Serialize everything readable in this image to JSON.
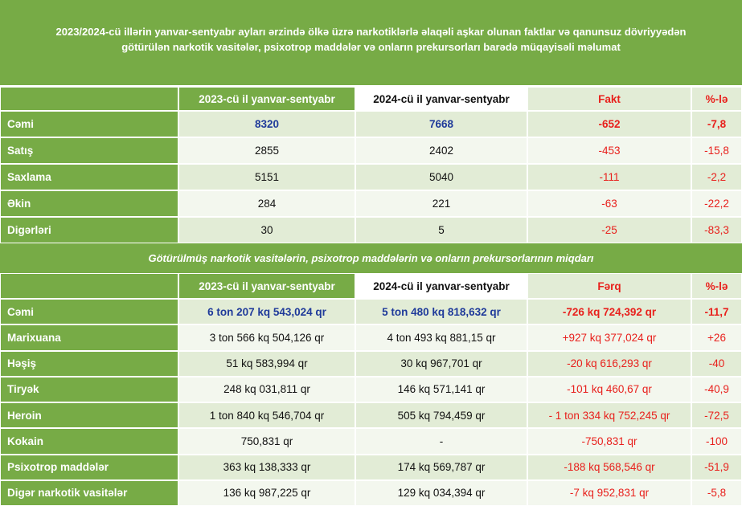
{
  "title": "2023/2024-cü illərin yanvar-sentyabr ayları ərzində ölkə üzrə narkotiklərlə əlaqəli aşkar olunan faktlar və qanunsuz dövriyyədən götürülən narkotik vasitələr, psixotrop maddələr və onların prekursorları barədə müqayisəli məlumat",
  "table1": {
    "columns": [
      "2023-cü il yanvar-sentyabr",
      "2024-cü il yanvar-sentyabr",
      "Fakt",
      "%-lə"
    ],
    "rows": [
      {
        "label": "Cəmi",
        "cells": [
          "8320",
          "7668",
          "-652",
          "-7,8"
        ]
      },
      {
        "label": "Satış",
        "cells": [
          "2855",
          "2402",
          "-453",
          "-15,8"
        ]
      },
      {
        "label": "Saxlama",
        "cells": [
          "5151",
          "5040",
          "-111",
          "-2,2"
        ]
      },
      {
        "label": "Əkin",
        "cells": [
          "284",
          "221",
          "-63",
          "-22,2"
        ]
      },
      {
        "label": "Digərləri",
        "cells": [
          "30",
          "5",
          "-25",
          "-83,3"
        ]
      }
    ]
  },
  "section_title": "Götürülmüş narkotik vasitələrin, psixotrop maddələrin və onların prekursorlarının miqdarı",
  "table2": {
    "columns": [
      "2023-cü il yanvar-sentyabr",
      "2024-cü il yanvar-sentyabr",
      "Fərq",
      "%-lə"
    ],
    "rows": [
      {
        "label": "Cəmi",
        "cells": [
          "6 ton 207 kq 543,024 qr",
          "5 ton 480 kq 818,632 qr",
          "-726 kq 724,392 qr",
          "-11,7"
        ]
      },
      {
        "label": "Marixuana",
        "cells": [
          "3 ton 566 kq 504,126 qr",
          "4 ton 493 kq 881,15 qr",
          "+927 kq 377,024 qr",
          "+26"
        ]
      },
      {
        "label": "Həşiş",
        "cells": [
          "51 kq 583,994 qr",
          "30 kq 967,701 qr",
          "-20 kq 616,293 qr",
          "-40"
        ]
      },
      {
        "label": "Tiryək",
        "cells": [
          "248 kq 031,811 qr",
          "146 kq 571,141 qr",
          "-101 kq 460,67 qr",
          "-40,9"
        ]
      },
      {
        "label": "Heroin",
        "cells": [
          "1 ton 840 kq 546,704 qr",
          "505 kq 794,459 qr",
          "- 1 ton 334 kq 752,245 qr",
          "-72,5"
        ]
      },
      {
        "label": "Kokain",
        "cells": [
          "750,831 qr",
          "-",
          "-750,831 qr",
          "-100"
        ]
      },
      {
        "label": "Psixotrop maddələr",
        "cells": [
          "363 kq 138,333 qr",
          "174 kq 569,787 qr",
          "-188 kq 568,546 qr",
          "-51,9"
        ]
      },
      {
        "label": "Digər narkotik vasitələr",
        "cells": [
          "136 kq 987,225 qr",
          "129 kq 034,394 qr",
          "-7 kq 952,831 qr",
          "-5,8"
        ]
      }
    ]
  }
}
